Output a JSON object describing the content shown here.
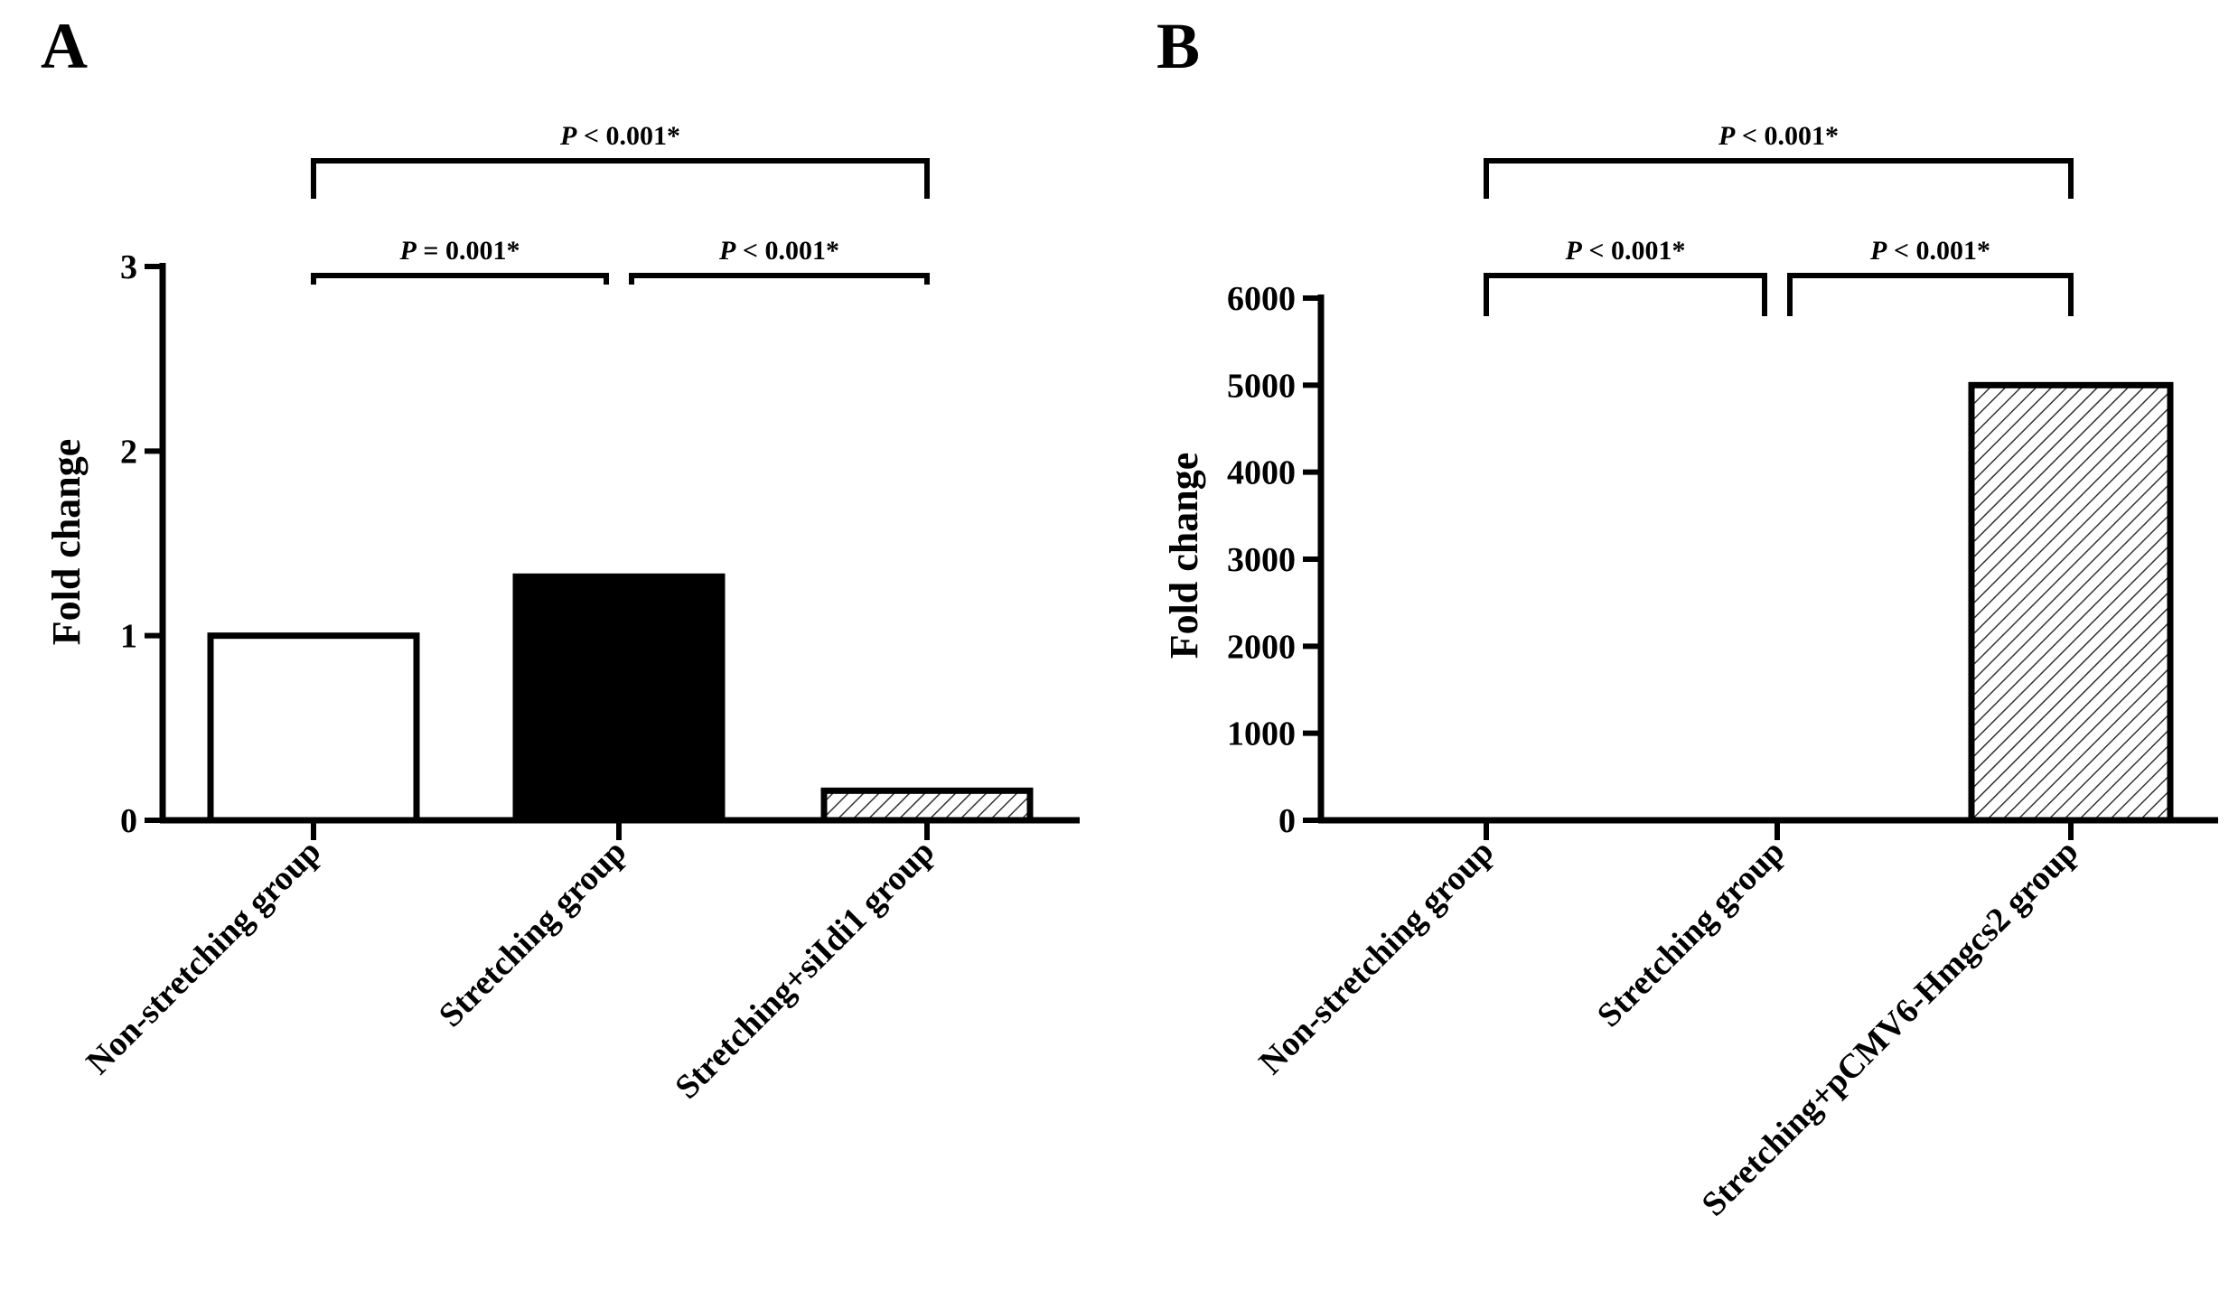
{
  "chart_data": [
    {
      "panel": "A",
      "type": "bar",
      "ylabel": "Fold change",
      "ylim": [
        0,
        3
      ],
      "yticks": [
        "0",
        "1",
        "2",
        "3"
      ],
      "categories": [
        "Non-stretching group",
        "Stretching group",
        "Stretching+siIdi1 group"
      ],
      "values": [
        1.0,
        1.32,
        0.16
      ],
      "fills": [
        "white",
        "black",
        "hatched"
      ],
      "comparisons": [
        {
          "label_p": "P",
          "label_rest": " = 0.001*",
          "from": 0,
          "to": 1
        },
        {
          "label_p": "P",
          "label_rest": " < 0.001*",
          "from": 1,
          "to": 2
        },
        {
          "label_p": "P",
          "label_rest": " < 0.001*",
          "from": 0,
          "to": 2
        }
      ]
    },
    {
      "panel": "B",
      "type": "bar",
      "ylabel": "Fold change",
      "ylim": [
        0,
        6000
      ],
      "yticks": [
        "0",
        "1000",
        "2000",
        "3000",
        "4000",
        "5000",
        "6000"
      ],
      "categories": [
        "Non-stretching group",
        "Stretching group",
        "Stretching+pCMV6-Hmgcs2 group"
      ],
      "values": [
        1,
        1,
        5000
      ],
      "fills": [
        "white",
        "black",
        "hatched"
      ],
      "comparisons": [
        {
          "label_p": "P",
          "label_rest": " < 0.001*",
          "from": 0,
          "to": 1
        },
        {
          "label_p": "P",
          "label_rest": " < 0.001*",
          "from": 1,
          "to": 2
        },
        {
          "label_p": "P",
          "label_rest": " < 0.001*",
          "from": 0,
          "to": 2
        }
      ]
    }
  ]
}
